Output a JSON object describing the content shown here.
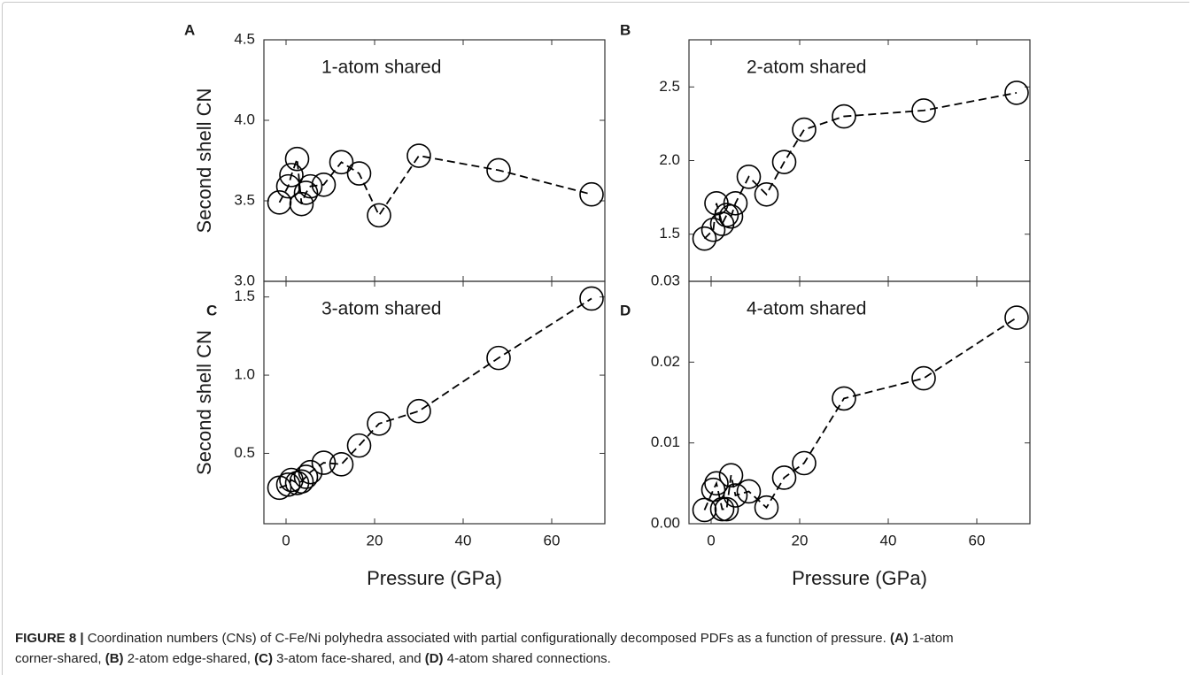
{
  "chart_data": [
    {
      "type": "line",
      "panel_label": "A",
      "annotation": "1-atom shared",
      "ylabel": "Second shell CN",
      "x": [
        -1.5,
        0.5,
        1.2,
        2.5,
        3.5,
        4.5,
        5.5,
        8.5,
        12.5,
        16.5,
        21,
        30,
        48,
        69
      ],
      "series": [
        {
          "color": "#000000",
          "values": [
            3.49,
            3.59,
            3.66,
            3.76,
            3.48,
            3.55,
            3.59,
            3.6,
            3.74,
            3.67,
            3.41,
            3.78,
            3.69,
            3.54
          ]
        }
      ],
      "xlim": [
        -5,
        72
      ],
      "ylim": [
        3.0,
        4.5
      ],
      "xticks": [
        0,
        20,
        40,
        60
      ],
      "xtick_labels": false,
      "yticks": [
        {
          "value": 3.0,
          "label": "3.0"
        },
        3.5,
        {
          "value": 4.0,
          "label": "4.0"
        },
        4.5
      ]
    },
    {
      "type": "line",
      "panel_label": "B",
      "annotation": "2-atom shared",
      "x": [
        -1.5,
        0.5,
        1.2,
        2.5,
        3.5,
        4.5,
        5.5,
        8.5,
        12.5,
        16.5,
        21,
        30,
        48,
        69
      ],
      "series": [
        {
          "color": "#000000",
          "values": [
            1.47,
            1.53,
            1.71,
            1.57,
            1.63,
            1.62,
            1.71,
            1.89,
            1.77,
            1.99,
            2.21,
            2.3,
            2.34,
            2.46
          ]
        }
      ],
      "xlim": [
        -5,
        72
      ],
      "ylim": [
        1.18,
        2.82
      ],
      "xticks": [
        0,
        20,
        40,
        60
      ],
      "xtick_labels": false,
      "yticks": [
        1.5,
        {
          "value": 2.0,
          "label": "2.0"
        },
        2.5
      ]
    },
    {
      "type": "line",
      "panel_label": "C",
      "annotation": "3-atom shared",
      "ylabel": "Second shell CN",
      "xlabel": "Pressure (GPa)",
      "x": [
        -1.5,
        0.5,
        1.2,
        2.5,
        3.5,
        4.5,
        5.5,
        8.5,
        12.5,
        16.5,
        21,
        30,
        48,
        69
      ],
      "series": [
        {
          "color": "#000000",
          "values": [
            0.28,
            0.3,
            0.33,
            0.31,
            0.32,
            0.35,
            0.38,
            0.44,
            0.43,
            0.55,
            0.69,
            0.77,
            1.11,
            1.49
          ]
        }
      ],
      "xlim": [
        -5,
        72
      ],
      "ylim": [
        0.05,
        1.6
      ],
      "xticks": [
        0,
        20,
        40,
        60
      ],
      "xtick_labels": true,
      "yticks": [
        0.5,
        {
          "value": 1.0,
          "label": "1.0"
        },
        1.5
      ]
    },
    {
      "type": "line",
      "panel_label": "D",
      "annotation": "4-atom shared",
      "xlabel": "Pressure (GPa)",
      "x": [
        -1.5,
        0.5,
        1.2,
        2.5,
        3.5,
        4.5,
        5.5,
        8.5,
        12.5,
        16.5,
        21,
        30,
        48,
        69
      ],
      "series": [
        {
          "color": "#000000",
          "values": [
            0.0017,
            0.0042,
            0.005,
            0.0018,
            0.0018,
            0.006,
            0.0035,
            0.004,
            0.002,
            0.0057,
            0.0075,
            0.0155,
            0.018,
            0.0255
          ]
        }
      ],
      "xlim": [
        -5,
        72
      ],
      "ylim": [
        0,
        0.03
      ],
      "xticks": [
        0,
        20,
        40,
        60
      ],
      "xtick_labels": true,
      "yticks": [
        {
          "value": 0,
          "label": "0.00"
        },
        {
          "value": 0.01,
          "label": "0.01"
        },
        {
          "value": 0.02,
          "label": "0.02"
        },
        {
          "value": 0.03,
          "label": "0.03"
        }
      ]
    }
  ],
  "caption": {
    "lines": [
      [
        {
          "text": "FIGURE 8 |",
          "bold": true
        },
        {
          "text": " Coordination numbers (CNs) of C-Fe/Ni polyhedra associated with partial configurationally decomposed PDFs as a function of pressure. ",
          "bold": false
        },
        {
          "text": "(A)",
          "bold": true
        },
        {
          "text": " 1-atom",
          "bold": false
        }
      ],
      [
        {
          "text": "corner-shared, ",
          "bold": false
        },
        {
          "text": "(B)",
          "bold": true
        },
        {
          "text": " 2-atom edge-shared, ",
          "bold": false
        },
        {
          "text": "(C)",
          "bold": true
        },
        {
          "text": " 3-atom face-shared, and ",
          "bold": false
        },
        {
          "text": "(D)",
          "bold": true
        },
        {
          "text": " 4-atom shared connections.",
          "bold": false
        }
      ]
    ]
  }
}
